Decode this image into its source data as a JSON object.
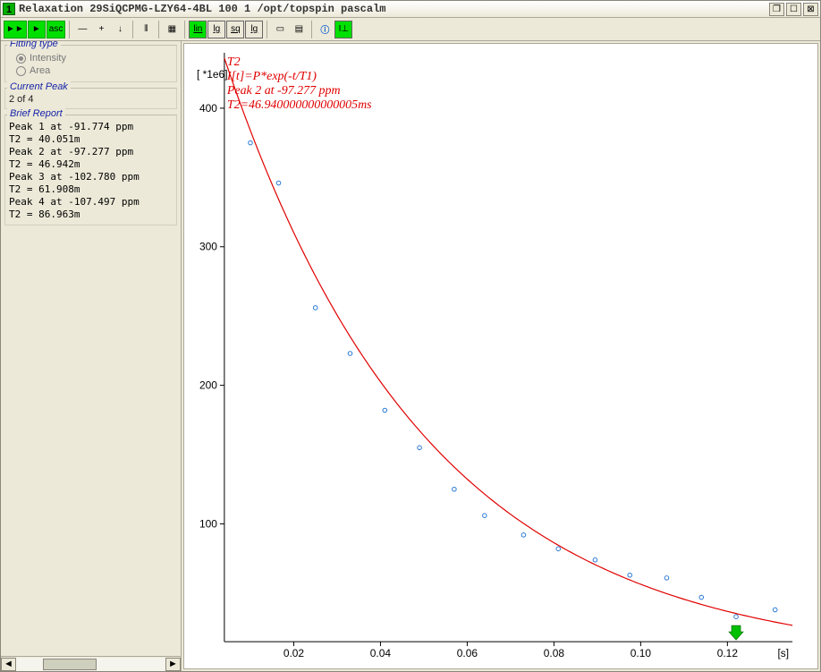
{
  "window": {
    "badge": "1",
    "title": "Relaxation 29SiQCPMG-LZY64-4BL 100 1 /opt/topspin pascalm"
  },
  "toolbar": {
    "btn_play1": "►►",
    "btn_play2": "►",
    "btn_asc": "asc",
    "btn_minus": "—",
    "btn_plus": "+",
    "btn_down": "↓",
    "btn_ruler": "⦀",
    "btn_grid": "▦",
    "btn_lin": "lin",
    "btn_lg1": "lg",
    "btn_sq": "sq",
    "btn_lg2": "lg",
    "btn_rect": "▭",
    "btn_doc": "▤",
    "btn_info": "ⓘ",
    "btn_int": "I⊥"
  },
  "sidebar": {
    "fitting_type": {
      "legend": "Fitting type",
      "intensity_label": "Intensity",
      "area_label": "Area",
      "selected": "intensity"
    },
    "current_peak": {
      "legend": "Current Peak",
      "text": "2 of 4"
    },
    "brief_report": {
      "legend": "Brief Report",
      "lines": [
        "Peak 1 at -91.774 ppm",
        "T2  =   40.051m",
        "Peak 2 at -97.277 ppm",
        "T2  =   46.942m",
        "Peak 3 at -102.780 ppm",
        "T2  =   61.908m",
        "Peak 4 at -107.497 ppm",
        "T2  =   86.963m"
      ]
    }
  },
  "plot": {
    "annot_lines": [
      "T2",
      "I[t]=P*exp(-t/T1)",
      "Peak 2 at -97.277 ppm",
      "T2=46.940000000000005ms"
    ],
    "y_axis_title": "[ *1e6]",
    "x_axis_title": "[s]",
    "y_ticks": [
      100,
      200,
      300,
      400
    ],
    "x_ticks": [
      0.02,
      0.04,
      0.06,
      0.08,
      0.1,
      0.12
    ],
    "x_range": [
      0.004,
      0.135
    ],
    "y_range": [
      15,
      440
    ],
    "curve": {
      "P": 475,
      "T1": 0.04694
    },
    "data_points": [
      {
        "x": 0.01,
        "y": 375
      },
      {
        "x": 0.0165,
        "y": 346
      },
      {
        "x": 0.025,
        "y": 256
      },
      {
        "x": 0.033,
        "y": 223
      },
      {
        "x": 0.041,
        "y": 182
      },
      {
        "x": 0.049,
        "y": 155
      },
      {
        "x": 0.057,
        "y": 125
      },
      {
        "x": 0.064,
        "y": 106
      },
      {
        "x": 0.073,
        "y": 92
      },
      {
        "x": 0.081,
        "y": 82
      },
      {
        "x": 0.0895,
        "y": 74
      },
      {
        "x": 0.0975,
        "y": 63
      },
      {
        "x": 0.106,
        "y": 61
      },
      {
        "x": 0.114,
        "y": 47
      },
      {
        "x": 0.122,
        "y": 33
      },
      {
        "x": 0.131,
        "y": 38
      }
    ],
    "marker": {
      "x": 0.122,
      "color": "#00c000"
    },
    "colors": {
      "curve": "#e00000",
      "points": "#2b7bd6",
      "axis": "#000000",
      "background": "#ffffff"
    }
  }
}
